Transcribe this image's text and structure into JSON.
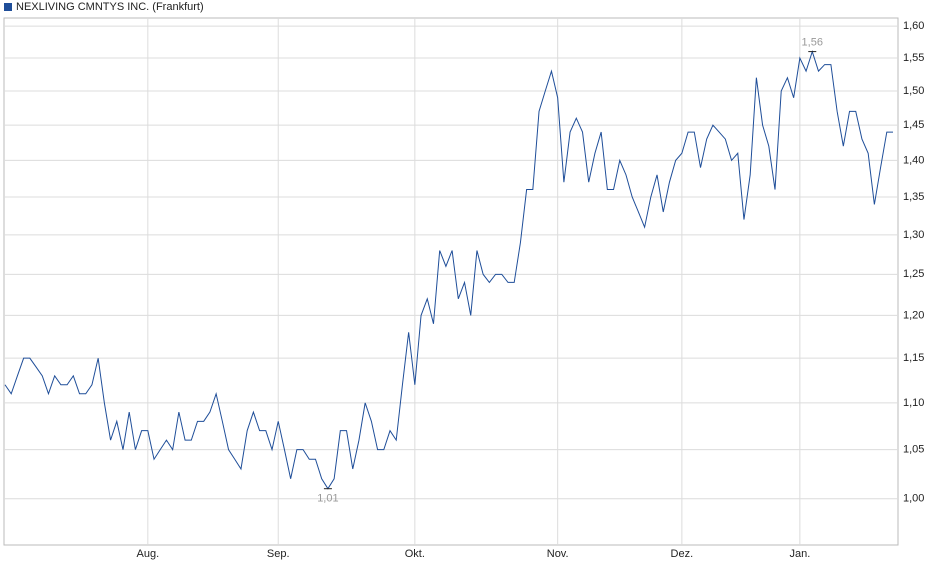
{
  "chart_data": {
    "type": "line",
    "log_scale": true,
    "grid": true,
    "series": [
      {
        "name": "NEXLIVING CMNTYS INC. (Frankfurt)",
        "color": "#1f4e99",
        "values": [
          1.12,
          1.11,
          1.13,
          1.15,
          1.15,
          1.14,
          1.13,
          1.11,
          1.13,
          1.12,
          1.12,
          1.13,
          1.11,
          1.11,
          1.12,
          1.15,
          1.1,
          1.06,
          1.08,
          1.05,
          1.09,
          1.05,
          1.07,
          1.07,
          1.04,
          1.05,
          1.06,
          1.05,
          1.09,
          1.06,
          1.06,
          1.08,
          1.08,
          1.09,
          1.11,
          1.08,
          1.05,
          1.04,
          1.03,
          1.07,
          1.09,
          1.07,
          1.07,
          1.05,
          1.08,
          1.05,
          1.02,
          1.05,
          1.05,
          1.04,
          1.04,
          1.02,
          1.01,
          1.02,
          1.07,
          1.07,
          1.03,
          1.06,
          1.1,
          1.08,
          1.05,
          1.05,
          1.07,
          1.06,
          1.12,
          1.18,
          1.12,
          1.2,
          1.22,
          1.19,
          1.28,
          1.26,
          1.28,
          1.22,
          1.24,
          1.2,
          1.28,
          1.25,
          1.24,
          1.25,
          1.25,
          1.24,
          1.24,
          1.29,
          1.36,
          1.36,
          1.47,
          1.5,
          1.53,
          1.49,
          1.37,
          1.44,
          1.46,
          1.44,
          1.37,
          1.41,
          1.44,
          1.36,
          1.36,
          1.4,
          1.38,
          1.35,
          1.33,
          1.31,
          1.35,
          1.38,
          1.33,
          1.37,
          1.4,
          1.41,
          1.44,
          1.44,
          1.39,
          1.43,
          1.45,
          1.44,
          1.43,
          1.4,
          1.41,
          1.32,
          1.38,
          1.52,
          1.45,
          1.42,
          1.36,
          1.5,
          1.52,
          1.49,
          1.55,
          1.53,
          1.56,
          1.53,
          1.54,
          1.54,
          1.47,
          1.42,
          1.47,
          1.47,
          1.43,
          1.41,
          1.34,
          1.39,
          1.44,
          1.44
        ]
      }
    ],
    "categories": [
      null,
      null,
      null,
      null,
      null,
      null,
      null,
      null,
      null,
      null,
      null,
      null,
      null,
      null,
      null,
      null,
      null,
      null,
      null,
      null,
      null,
      null,
      null,
      "Aug.",
      null,
      null,
      null,
      null,
      null,
      null,
      null,
      null,
      null,
      null,
      null,
      null,
      null,
      null,
      null,
      null,
      null,
      null,
      null,
      null,
      "Sep.",
      null,
      null,
      null,
      null,
      null,
      null,
      null,
      null,
      null,
      null,
      null,
      null,
      null,
      null,
      null,
      null,
      null,
      null,
      null,
      null,
      null,
      "Okt.",
      null,
      null,
      null,
      null,
      null,
      null,
      null,
      null,
      null,
      null,
      null,
      null,
      null,
      null,
      null,
      null,
      null,
      null,
      null,
      null,
      null,
      null,
      "Nov.",
      null,
      null,
      null,
      null,
      null,
      null,
      null,
      null,
      null,
      null,
      null,
      null,
      null,
      null,
      null,
      null,
      null,
      null,
      null,
      "Dez.",
      null,
      null,
      null,
      null,
      null,
      null,
      null,
      null,
      null,
      null,
      null,
      null,
      null,
      null,
      null,
      null,
      null,
      null,
      "Jan.",
      null,
      null,
      null,
      null,
      null,
      null,
      null,
      null,
      null,
      null,
      null,
      null,
      null,
      null,
      null
    ],
    "ylim": [
      0.955,
      1.613
    ],
    "yticks": [
      {
        "value": 1.0,
        "label": "1,00"
      },
      {
        "value": 1.05,
        "label": "1,05"
      },
      {
        "value": 1.1,
        "label": "1,10"
      },
      {
        "value": 1.15,
        "label": "1,15"
      },
      {
        "value": 1.2,
        "label": "1,20"
      },
      {
        "value": 1.25,
        "label": "1,25"
      },
      {
        "value": 1.3,
        "label": "1,30"
      },
      {
        "value": 1.35,
        "label": "1,35"
      },
      {
        "value": 1.4,
        "label": "1,40"
      },
      {
        "value": 1.45,
        "label": "1,45"
      },
      {
        "value": 1.5,
        "label": "1,50"
      },
      {
        "value": 1.55,
        "label": "1,55"
      },
      {
        "value": 1.6,
        "label": "1,60"
      }
    ],
    "annotations": [
      {
        "value": 1.56,
        "label": "1,56"
      },
      {
        "value": 1.01,
        "label": "1,01"
      }
    ]
  }
}
